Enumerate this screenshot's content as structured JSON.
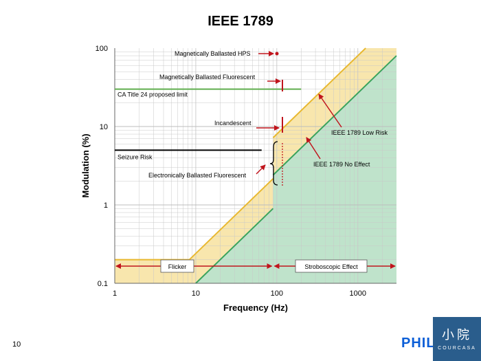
{
  "title": "IEEE 1789",
  "page_number": "10",
  "brand": {
    "text": "PHILIPS",
    "badge_cn": "小院",
    "badge_en": "COURCASA"
  },
  "colors": {
    "low_risk_fill": "#f8e6ad",
    "low_risk_line": "#e8b830",
    "no_effect_fill": "#bfe3cb",
    "no_effect_line": "#3aa35d",
    "ca_title24_line": "#5fae4e",
    "annotation_red": "#c0141c",
    "seizure_line": "#000000"
  },
  "chart_data": {
    "type": "area",
    "title": "IEEE 1789",
    "xlabel": "Frequency (Hz)",
    "ylabel": "Modulation (%)",
    "xscale": "log",
    "yscale": "log",
    "xlim": [
      1,
      3000
    ],
    "ylim": [
      0.1,
      100
    ],
    "x_tick_labels": [
      "1",
      "10",
      "100",
      "1000"
    ],
    "y_tick_labels": [
      "0.1",
      "1",
      "10",
      "100"
    ],
    "grid": true,
    "series": [
      {
        "name": "IEEE 1789 Low Risk",
        "points": [
          [
            1,
            0.2
          ],
          [
            8.33,
            0.2
          ],
          [
            90,
            2.16
          ],
          [
            90,
            7.2
          ],
          [
            1250,
            100
          ],
          [
            3000,
            100
          ]
        ]
      },
      {
        "name": "IEEE 1789 No Effect",
        "points": [
          [
            10,
            0.1
          ],
          [
            90,
            0.9
          ],
          [
            90,
            2.4
          ],
          [
            3000,
            80
          ]
        ]
      }
    ],
    "reference_lines": [
      {
        "label": "CA Title 24 proposed limit",
        "x_range": [
          1,
          200
        ],
        "y": 30
      },
      {
        "label": "Seizure Risk",
        "x_range": [
          1,
          65
        ],
        "y": 5
      }
    ],
    "annotations": [
      {
        "label": "Magnetically  Ballasted HPS",
        "x": 120,
        "y": 80
      },
      {
        "label": "Magnetically  Ballasted Fluorescent",
        "x": 120,
        "y": 30
      },
      {
        "label": "Incandescent",
        "x": 120,
        "y": 12
      },
      {
        "label": "Electronically Ballasted Fluorescent",
        "x": 120,
        "y": 3.5
      },
      {
        "label": "IEEE 1789 Low Risk",
        "x": 320,
        "y": 30
      },
      {
        "label": "IEEE 1789 No Effect",
        "x": 240,
        "y": 9
      }
    ],
    "regions": [
      {
        "label": "Flicker",
        "x_range": [
          1,
          90
        ]
      },
      {
        "label": "Stroboscopic Effect",
        "x_range": [
          90,
          3000
        ]
      }
    ]
  }
}
